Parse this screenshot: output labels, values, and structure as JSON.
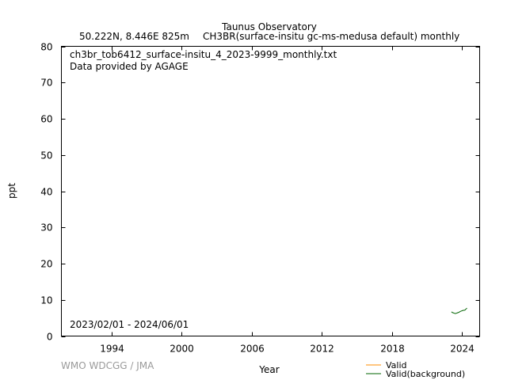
{
  "chart_data": {
    "type": "line",
    "title": "Taunus Observatory",
    "subtitle_location": "50.222N, 8.446E 825m",
    "subtitle_species": "CH3BR(surface-insitu gc-ms-medusa default) monthly",
    "file_label": "ch3br_tob6412_surface-insitu_4_2023-9999_monthly.txt",
    "provider_label": "Data provided by AGAGE",
    "period_label": "2023/02/01 - 2024/06/01",
    "xlabel": "Year",
    "ylabel": "ppt",
    "xlim": [
      1989.7,
      2025.5
    ],
    "ylim": [
      0,
      80
    ],
    "x_ticks": [
      1994,
      2000,
      2006,
      2012,
      2018,
      2024
    ],
    "y_ticks": [
      0,
      10,
      20,
      30,
      40,
      50,
      60,
      70,
      80
    ],
    "grid": false,
    "legend_position": "bottom-right",
    "watermark": "WMO WDCGG / JMA",
    "series": [
      {
        "name": "Valid",
        "color": "#ff8c00",
        "x": [],
        "y": []
      },
      {
        "name": "Valid(background)",
        "color": "#006400",
        "x": [
          "2023-02",
          "2023-03",
          "2023-04",
          "2023-05",
          "2023-06",
          "2023-07",
          "2023-08",
          "2023-09",
          "2023-10",
          "2023-11",
          "2023-12",
          "2024-01",
          "2024-02",
          "2024-03",
          "2024-04",
          "2024-05",
          "2024-06"
        ],
        "y": [
          6.7,
          6.5,
          6.4,
          6.3,
          6.2,
          6.3,
          6.4,
          6.5,
          6.6,
          6.8,
          6.9,
          7.0,
          7.1,
          7.1,
          7.2,
          7.5,
          7.7
        ]
      }
    ]
  }
}
